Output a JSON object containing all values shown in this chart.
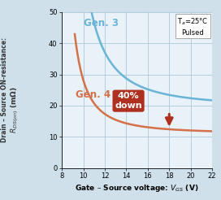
{
  "xlim": [
    8,
    22
  ],
  "ylim": [
    0,
    50
  ],
  "xticks": [
    8,
    10,
    12,
    14,
    16,
    18,
    20,
    22
  ],
  "yticks": [
    0,
    10,
    20,
    30,
    40,
    50
  ],
  "bg_color": "#cfe0ea",
  "plot_bg_color": "#e8f2f8",
  "gen3_color": "#6ab4d8",
  "gen4_color": "#d4704a",
  "annotation_bg": "#b03020",
  "annotation_text_color": "#ffffff",
  "grid_color": "#aac8d8",
  "gen3_label": "Gen. 3",
  "gen4_label": "Gen. 4",
  "down_label": "40%\ndown",
  "condition_line1": "T",
  "condition_text": "Tₐ=25°C\nPulsed",
  "ylabel_top": "Drain – Source ON-resistance:",
  "ylabel_bottom": "Rₛₛ(ₒₙ) (mΩ)",
  "xlabel": "Gate – Source voltage: V₂ₛ (V)"
}
